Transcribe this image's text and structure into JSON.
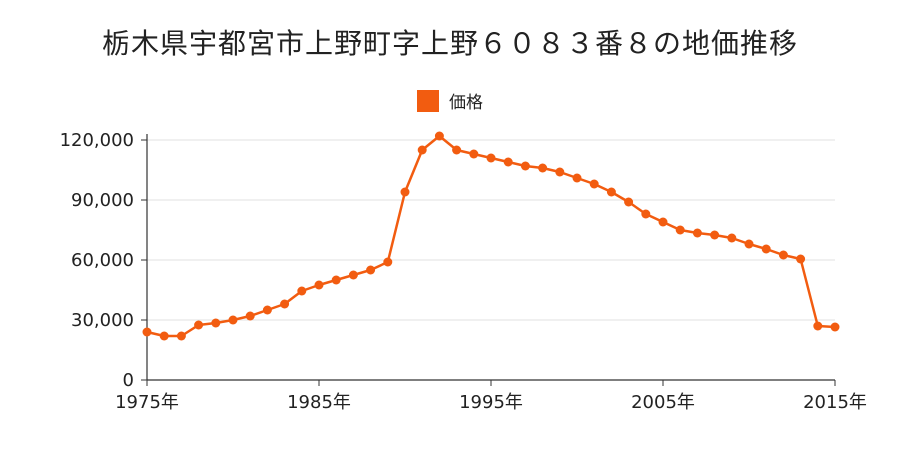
{
  "colors": {
    "series": "#f25c10",
    "axis": "#333333",
    "grid": "#e0e0e0",
    "background": "#ffffff"
  },
  "chart_data": {
    "type": "line",
    "title": "栃木県宇都宮市上野町字上野６０８３番８の地価推移",
    "legend_position": "top-center",
    "grid": true,
    "xlim": [
      1975,
      2015
    ],
    "ylim": [
      0,
      120000
    ],
    "x_ticks": [
      {
        "value": 1975,
        "label": "1975年"
      },
      {
        "value": 1985,
        "label": "1985年"
      },
      {
        "value": 1995,
        "label": "1995年"
      },
      {
        "value": 2005,
        "label": "2005年"
      },
      {
        "value": 2015,
        "label": "2015年"
      }
    ],
    "y_ticks": [
      {
        "value": 0,
        "label": "0"
      },
      {
        "value": 30000,
        "label": "30,000"
      },
      {
        "value": 60000,
        "label": "60,000"
      },
      {
        "value": 90000,
        "label": "90,000"
      },
      {
        "value": 120000,
        "label": "120,000"
      }
    ],
    "x": [
      1975,
      1976,
      1977,
      1978,
      1979,
      1980,
      1981,
      1982,
      1983,
      1984,
      1985,
      1986,
      1987,
      1988,
      1989,
      1990,
      1991,
      1992,
      1993,
      1994,
      1995,
      1996,
      1997,
      1998,
      1999,
      2000,
      2001,
      2002,
      2003,
      2004,
      2005,
      2006,
      2007,
      2008,
      2009,
      2010,
      2011,
      2012,
      2013,
      2014,
      2015
    ],
    "series": [
      {
        "name": "価格",
        "values": [
          24000,
          22000,
          22000,
          27500,
          28500,
          30000,
          32000,
          35000,
          38000,
          44500,
          47500,
          50000,
          52500,
          55000,
          59000,
          94000,
          115000,
          122000,
          115000,
          113000,
          111000,
          109000,
          107000,
          106000,
          104000,
          101000,
          98000,
          94000,
          89000,
          83000,
          79000,
          75000,
          73500,
          72500,
          71000,
          68000,
          65500,
          62500,
          60500,
          27000,
          26500
        ]
      }
    ]
  }
}
